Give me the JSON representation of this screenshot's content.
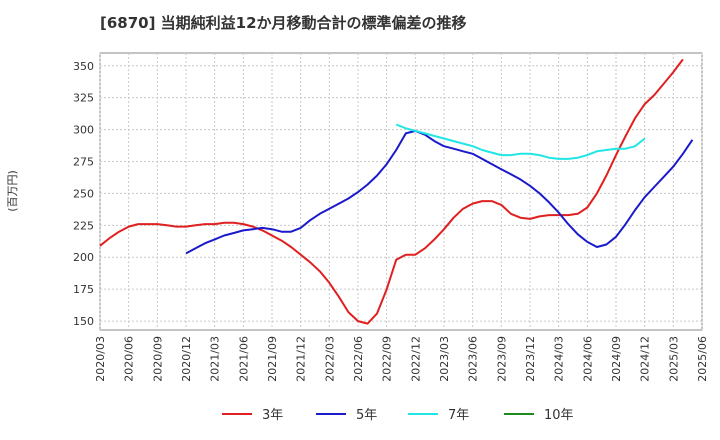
{
  "chart_data": {
    "type": "line",
    "title": "[6870]  当期純利益12か月移動合計の標準偏差の推移",
    "ylabel": "(百万円)",
    "ylim": [
      143,
      360
    ],
    "yticks": [
      150,
      175,
      200,
      225,
      250,
      275,
      300,
      325,
      350
    ],
    "xticks": [
      "2020/03",
      "2020/06",
      "2020/09",
      "2020/12",
      "2021/03",
      "2021/06",
      "2021/09",
      "2021/12",
      "2022/03",
      "2022/06",
      "2022/09",
      "2022/12",
      "2023/03",
      "2023/06",
      "2023/09",
      "2023/12",
      "2024/03",
      "2024/06",
      "2024/09",
      "2024/12",
      "2025/03",
      "2025/06"
    ],
    "grid": true,
    "legend_position": "bottom",
    "series": [
      {
        "name": "3年",
        "color": "#e02020",
        "start": "2020/03",
        "values": [
          209,
          215,
          220,
          224,
          226,
          226,
          226,
          225,
          224,
          224,
          225,
          226,
          226,
          227,
          227,
          226,
          224,
          221,
          217,
          213,
          208,
          202,
          196,
          189,
          180,
          169,
          157,
          150,
          148,
          156,
          175,
          198,
          202,
          202,
          207,
          214,
          222,
          231,
          238,
          242,
          244,
          244,
          241,
          234,
          231,
          230,
          232,
          233,
          233,
          233,
          234,
          239,
          250,
          264,
          280,
          295,
          309,
          320,
          327,
          336,
          345,
          355
        ]
      },
      {
        "name": "5年",
        "color": "#1a1acc",
        "start": "2020/12",
        "values": [
          203,
          207,
          211,
          214,
          217,
          219,
          221,
          222,
          223,
          222,
          220,
          220,
          223,
          229,
          234,
          238,
          242,
          246,
          251,
          257,
          264,
          273,
          284,
          297,
          299,
          296,
          291,
          287,
          285,
          283,
          281,
          277,
          273,
          269,
          265,
          261,
          256,
          250,
          243,
          235,
          226,
          218,
          212,
          208,
          210,
          216,
          226,
          237,
          247,
          255,
          263,
          271,
          281,
          292
        ]
      },
      {
        "name": "7年",
        "color": "#22e5e5",
        "start": "2022/10",
        "values": [
          304,
          301,
          299,
          297,
          295,
          293,
          291,
          289,
          287,
          284,
          282,
          280,
          280,
          281,
          281,
          280,
          278,
          277,
          277,
          278,
          280,
          283,
          284,
          285,
          285,
          287,
          293
        ]
      },
      {
        "name": "10年",
        "color": "#1e8a1e",
        "start": "2020/03",
        "values": []
      }
    ]
  }
}
